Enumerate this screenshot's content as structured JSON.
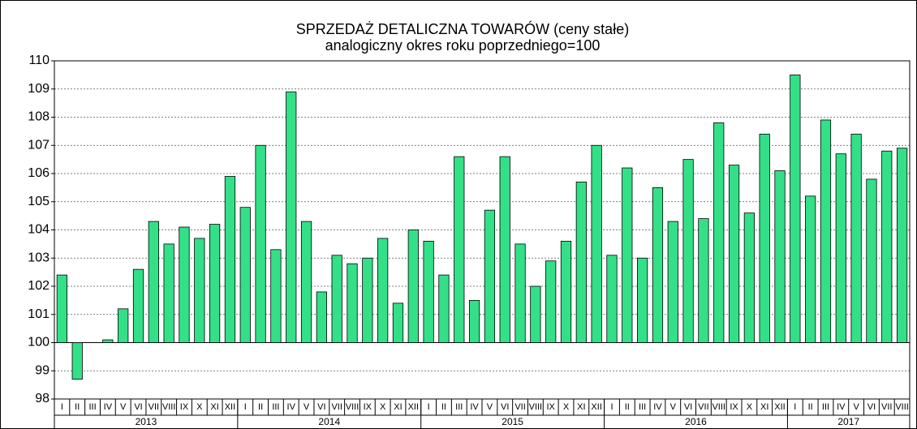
{
  "chart_data": {
    "type": "bar",
    "title": "SPRZEDAŻ DETALICZNA TOWARÓW  (ceny stałe)",
    "subtitle": "analogiczny okres roku poprzedniego=100",
    "categories": [
      "I",
      "II",
      "III",
      "IV",
      "V",
      "VI",
      "VII",
      "VIII",
      "IX",
      "X",
      "XI",
      "XII",
      "I",
      "II",
      "III",
      "IV",
      "V",
      "VI",
      "VII",
      "VIII",
      "IX",
      "X",
      "XI",
      "XII",
      "I",
      "II",
      "III",
      "IV",
      "V",
      "VI",
      "VII",
      "VIII",
      "IX",
      "X",
      "XI",
      "XII",
      "I",
      "II",
      "III",
      "IV",
      "V",
      "VI",
      "VII",
      "VIII",
      "IX",
      "X",
      "XI",
      "XII",
      "I",
      "II",
      "III",
      "IV",
      "V",
      "VI",
      "VII",
      "VIII"
    ],
    "years": [
      "2013",
      "2014",
      "2015",
      "2016",
      "2017"
    ],
    "values": [
      102.4,
      98.7,
      100.0,
      100.1,
      101.2,
      102.6,
      104.3,
      103.5,
      104.1,
      103.7,
      104.2,
      105.9,
      104.8,
      107.0,
      103.3,
      108.9,
      104.3,
      101.8,
      103.1,
      102.8,
      103.0,
      103.7,
      101.4,
      104.0,
      103.6,
      102.4,
      106.6,
      101.5,
      104.7,
      106.6,
      103.5,
      102.0,
      102.9,
      103.6,
      105.7,
      107.0,
      103.1,
      106.2,
      103.0,
      105.5,
      104.3,
      106.5,
      104.4,
      107.8,
      106.3,
      104.6,
      107.4,
      106.1,
      109.5,
      105.2,
      107.9,
      106.7,
      107.4,
      105.8,
      106.8,
      106.9
    ],
    "base": 100,
    "color": "#33e088",
    "ylim": [
      98,
      110
    ],
    "yticks": [
      98,
      99,
      100,
      101,
      102,
      103,
      104,
      105,
      106,
      107,
      108,
      109,
      110
    ],
    "grid": true
  }
}
